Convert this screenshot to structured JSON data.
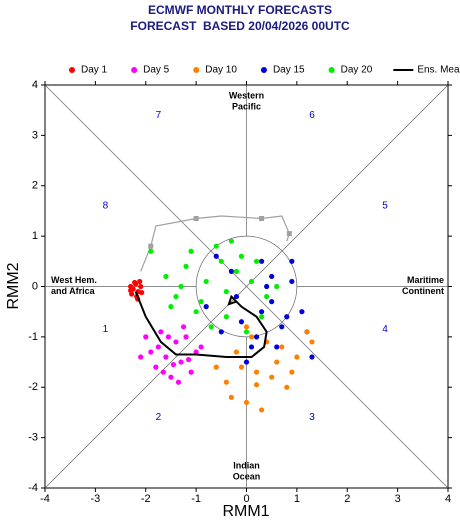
{
  "chart_data": {
    "type": "scatter",
    "title": "ECMWF MONTHLY FORECASTS",
    "subtitle": "FORECAST  BASED 20/04/2026 00UTC",
    "x_label": "RMM1",
    "y_label": "RMM2",
    "xlim": [
      -4,
      4
    ],
    "ylim": [
      -4,
      4
    ],
    "xticks": [
      -4,
      -3,
      -2,
      -1,
      0,
      1,
      2,
      3,
      4
    ],
    "yticks": [
      -4,
      -3,
      -2,
      -1,
      0,
      1,
      2,
      3,
      4
    ],
    "phase_labels": [
      "1",
      "2",
      "3",
      "4",
      "5",
      "6",
      "7",
      "8"
    ],
    "region_labels": {
      "top": [
        "Western",
        "Pacific"
      ],
      "bottom": [
        "Indian",
        "Ocean"
      ],
      "left": [
        "West Hem.",
        "and Africa"
      ],
      "right": [
        "Maritime",
        "Continent"
      ]
    },
    "past_trajectory": {
      "color": "#a0a0a0",
      "x": [
        -2.1,
        -1.9,
        -1.8,
        -1.0,
        -0.5,
        0.3,
        0.7,
        0.85,
        0.8
      ],
      "y": [
        0.3,
        0.8,
        1.2,
        1.35,
        1.4,
        1.35,
        1.4,
        1.05,
        0.9
      ]
    },
    "series": [
      {
        "name": "Day 1",
        "color": "#ff0000",
        "x": [
          -2.3,
          -2.25,
          -2.2,
          -2.15,
          -2.1,
          -2.28,
          -2.18,
          -2.08,
          -2.22,
          -2.12,
          -2.3,
          -2.16
        ],
        "y": [
          0,
          -0.05,
          0.05,
          -0.1,
          0,
          -0.15,
          -0.2,
          -0.12,
          0.08,
          0.1,
          -0.08,
          -0.25
        ]
      },
      {
        "name": "Day 5",
        "color": "#ff00ff",
        "x": [
          -2.0,
          -1.9,
          -1.8,
          -1.7,
          -1.6,
          -1.5,
          -1.4,
          -1.3,
          -1.2,
          -1.1,
          -1.0,
          -0.9,
          -1.75,
          -1.55,
          -1.35,
          -1.25,
          -1.65,
          -1.45,
          -1.15,
          -2.1
        ],
        "y": [
          -1.0,
          -1.3,
          -1.6,
          -0.9,
          -1.4,
          -1.8,
          -1.1,
          -1.5,
          -1.0,
          -1.7,
          -1.3,
          -1.2,
          -1.2,
          -1.0,
          -1.9,
          -0.8,
          -1.7,
          -1.55,
          -1.45,
          -1.4
        ]
      },
      {
        "name": "Day 10",
        "color": "#ff8000",
        "x": [
          -0.6,
          -0.4,
          -0.2,
          0,
          0.2,
          0.4,
          0.6,
          0.8,
          1.0,
          1.2,
          -0.3,
          0.1,
          0.3,
          0.5,
          0.7,
          -0.1,
          0.9,
          1.3,
          0.2,
          0.0
        ],
        "y": [
          -1.6,
          -1.9,
          -1.3,
          -2.3,
          -1.7,
          -1.1,
          -1.5,
          -2.0,
          -1.4,
          -0.9,
          -2.2,
          -1.0,
          -2.45,
          -1.8,
          -1.2,
          -1.6,
          -1.7,
          -1.1,
          -1.95,
          -0.8
        ]
      },
      {
        "name": "Day 15",
        "color": "#0000dd",
        "x": [
          -0.8,
          -0.5,
          -0.3,
          -0.1,
          0.1,
          0.3,
          0.5,
          0.7,
          0.9,
          1.1,
          1.3,
          0.2,
          0.4,
          0.6,
          0.8,
          -0.2,
          0,
          0.9,
          1.2,
          0.5,
          -0.6,
          0.3
        ],
        "y": [
          -0.4,
          -0.9,
          0.3,
          -0.7,
          -1.2,
          0.5,
          -0.3,
          -0.8,
          0.1,
          -0.5,
          -1.4,
          -1.0,
          0.0,
          -1.2,
          -0.6,
          -0.2,
          -1.5,
          0.5,
          -0.9,
          0.2,
          0.6,
          -0.5
        ]
      },
      {
        "name": "Day 20",
        "color": "#00ee00",
        "x": [
          -1.9,
          -1.6,
          -1.4,
          -1.2,
          -1.0,
          -0.8,
          -0.6,
          -0.4,
          -0.2,
          0,
          0.2,
          0.4,
          0.6,
          -1.5,
          -1.1,
          -0.7,
          -0.3,
          0.1,
          -0.9,
          -0.5,
          -1.3,
          0.3,
          -0.1,
          -0.4
        ],
        "y": [
          0.7,
          0.2,
          -0.2,
          0.4,
          -0.5,
          0.1,
          0.8,
          -0.6,
          0.3,
          -0.9,
          0.5,
          -0.2,
          0.0,
          -0.4,
          0.7,
          -0.8,
          0.9,
          0.1,
          -0.3,
          0.5,
          0.0,
          -0.6,
          0.6,
          -0.1
        ]
      }
    ],
    "mean": {
      "name": "Ens. Mean",
      "color": "#000000",
      "x": [
        -2.2,
        -2.0,
        -1.7,
        -1.4,
        -1.0,
        -0.4,
        0.1,
        0.35,
        0.4,
        0.2,
        -0.1,
        -0.3,
        -0.35,
        -0.2
      ],
      "y": [
        -0.1,
        -0.6,
        -1.1,
        -1.35,
        -1.35,
        -1.4,
        -1.4,
        -1.2,
        -0.9,
        -0.6,
        -0.4,
        -0.2,
        -0.35,
        -0.3
      ]
    }
  }
}
